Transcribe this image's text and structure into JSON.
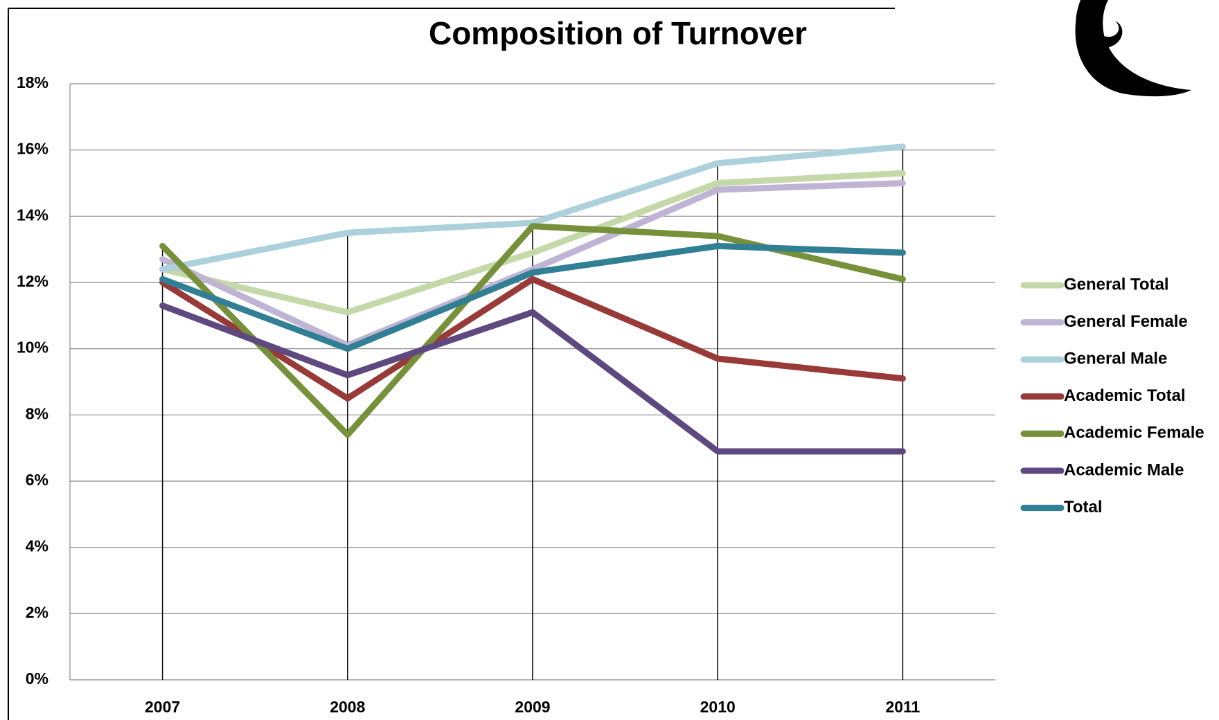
{
  "chart_data": {
    "type": "line",
    "title": "Composition of Turnover",
    "categories": [
      "2007",
      "2008",
      "2009",
      "2010",
      "2011"
    ],
    "series": [
      {
        "name": "General Total",
        "color": "#c4d8a8",
        "values": [
          12.4,
          11.1,
          12.9,
          15.0,
          15.3
        ]
      },
      {
        "name": "General Female",
        "color": "#c0b4d4",
        "values": [
          12.7,
          10.1,
          12.4,
          14.8,
          15.0
        ]
      },
      {
        "name": "General Male",
        "color": "#acd0dc",
        "values": [
          12.4,
          13.5,
          13.8,
          15.6,
          16.1
        ]
      },
      {
        "name": "Academic Total",
        "color": "#983a38",
        "values": [
          12.0,
          8.5,
          12.1,
          9.7,
          9.1
        ]
      },
      {
        "name": "Academic Female",
        "color": "#76913a",
        "values": [
          13.1,
          7.4,
          13.7,
          13.4,
          12.1
        ]
      },
      {
        "name": "Academic Male",
        "color": "#5e4880",
        "values": [
          11.3,
          9.2,
          11.1,
          6.9,
          6.9
        ]
      },
      {
        "name": "Total",
        "color": "#317f94",
        "values": [
          12.1,
          10.0,
          12.3,
          13.1,
          12.9
        ]
      }
    ],
    "ylim": [
      0,
      18
    ],
    "yticks": [
      {
        "value": 0,
        "label": "0%"
      },
      {
        "value": 2,
        "label": "2%"
      },
      {
        "value": 4,
        "label": "4%"
      },
      {
        "value": 6,
        "label": "6%"
      },
      {
        "value": 8,
        "label": "8%"
      },
      {
        "value": 10,
        "label": "10%"
      },
      {
        "value": 12,
        "label": "12%"
      },
      {
        "value": 14,
        "label": "14%"
      },
      {
        "value": 16,
        "label": "16%"
      },
      {
        "value": 18,
        "label": "18%"
      }
    ],
    "grid": true,
    "legend": "right"
  }
}
